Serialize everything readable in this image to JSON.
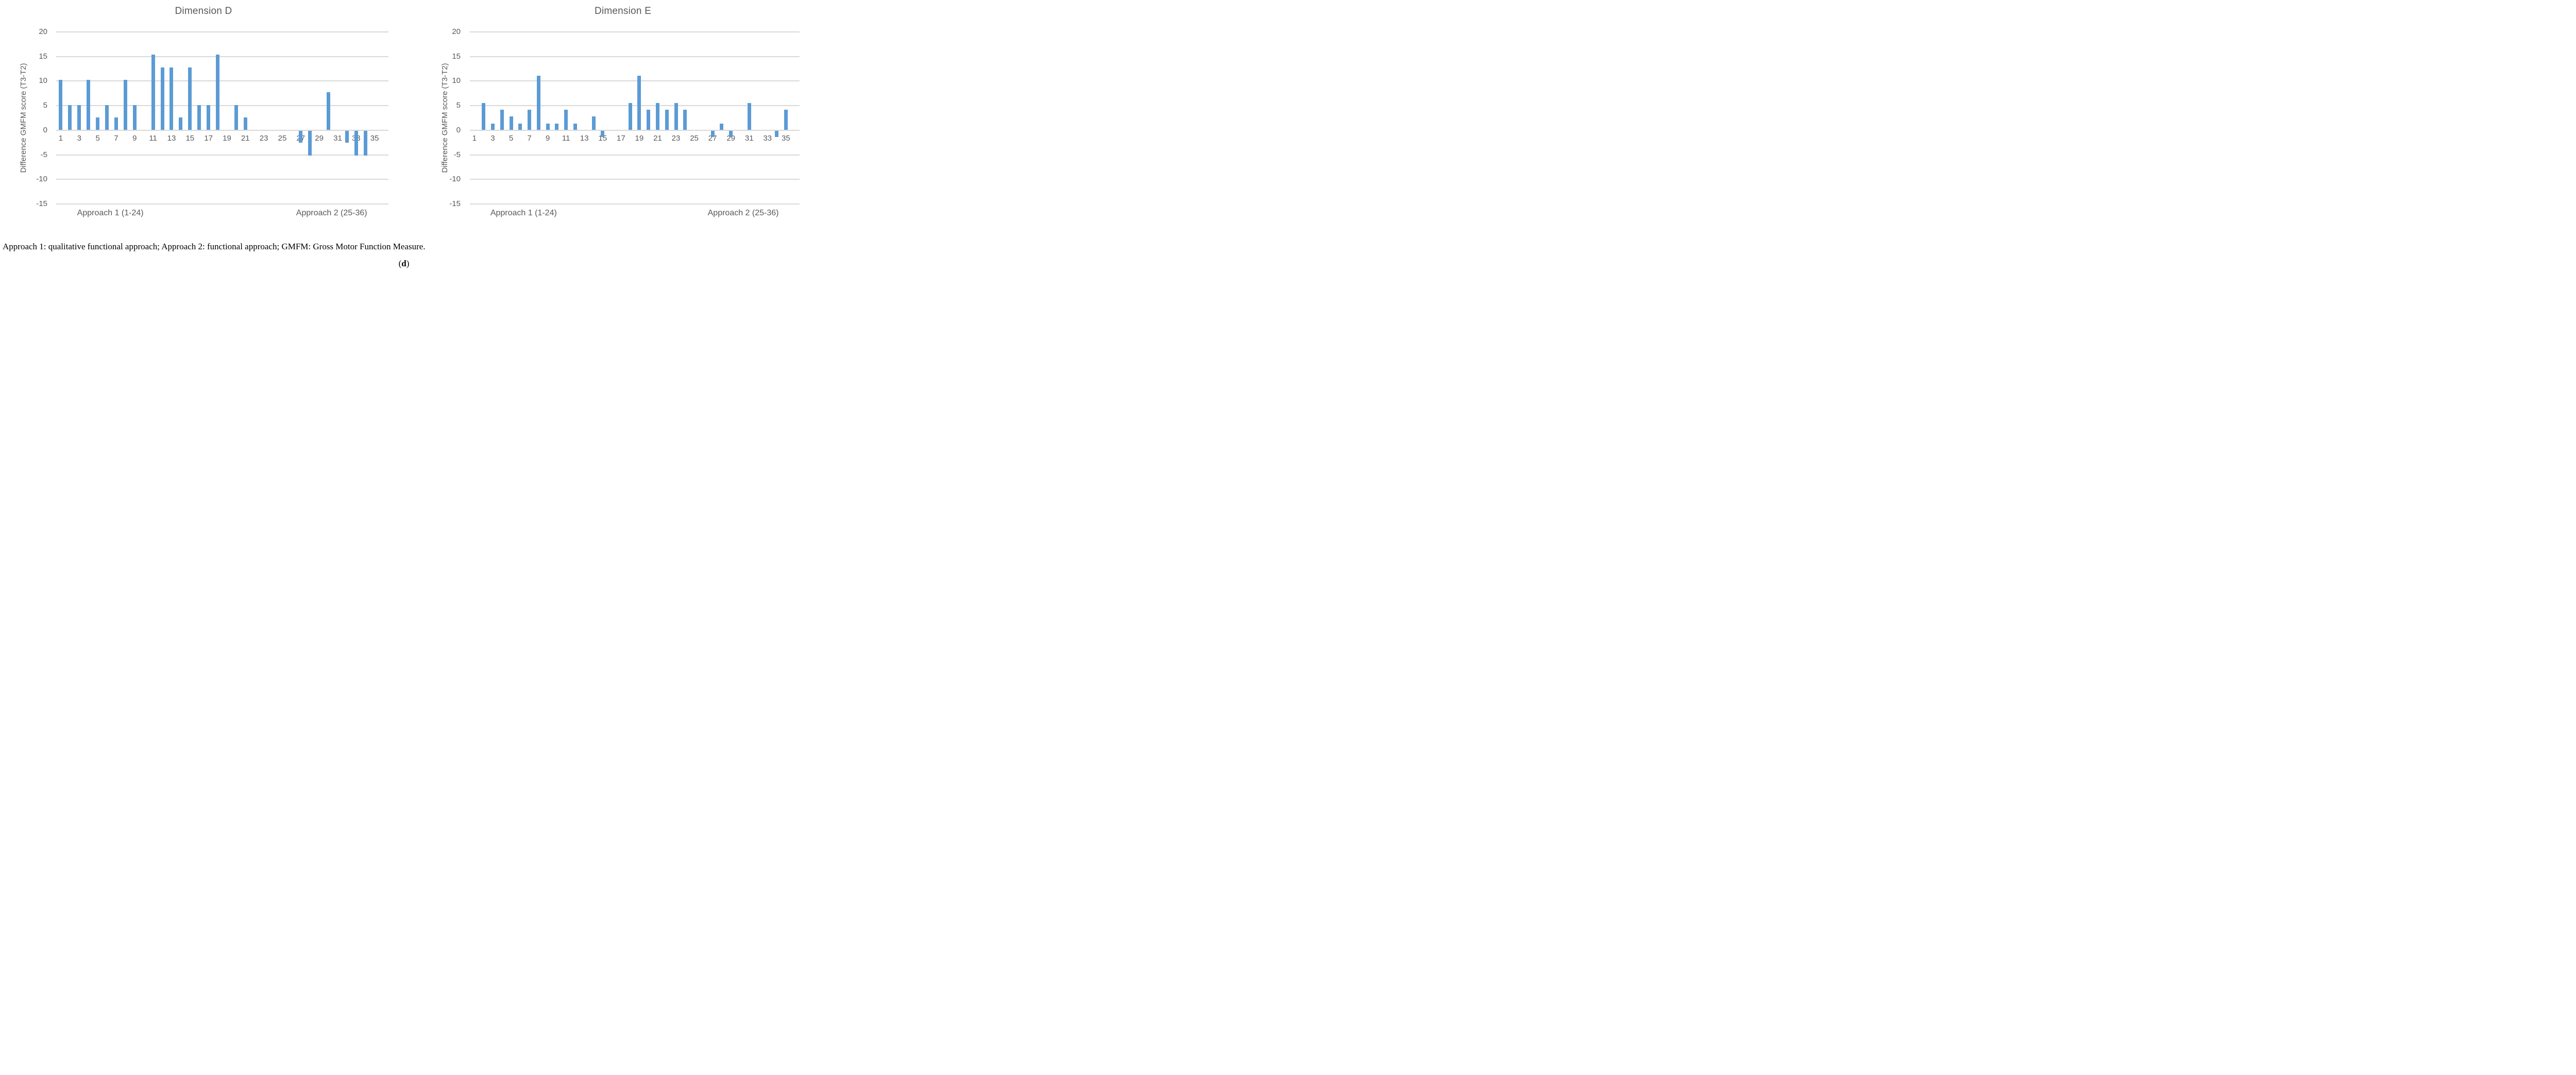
{
  "figure": {
    "caption": "Approach 1: qualitative functional approach; Approach 2: functional approach; GMFM: Gross Motor Function Measure.",
    "panel_label": {
      "open": "(",
      "letter": "d",
      "close": ")"
    }
  },
  "style": {
    "bar_color": "#5B9BD5",
    "grid_color": "#D9D9D9",
    "axis_text_color": "#595959",
    "title_color": "#595959"
  },
  "chart_data": [
    {
      "type": "bar",
      "title": "Dimension D",
      "ylabel": "Difference GMFM score (T3-T2)",
      "xlabel": "",
      "ylim": [
        -15,
        20
      ],
      "yticks": [
        20,
        15,
        10,
        5,
        0,
        -5,
        -10,
        -15
      ],
      "grid": true,
      "legend": null,
      "x": [
        1,
        2,
        3,
        4,
        5,
        6,
        7,
        8,
        9,
        10,
        11,
        12,
        13,
        14,
        15,
        16,
        17,
        18,
        19,
        20,
        21,
        22,
        23,
        24,
        25,
        26,
        27,
        28,
        29,
        30,
        31,
        32,
        33,
        34,
        35,
        36
      ],
      "xticks_shown": [
        1,
        3,
        5,
        7,
        9,
        11,
        13,
        15,
        17,
        19,
        21,
        23,
        25,
        27,
        29,
        31,
        33,
        35
      ],
      "values": [
        10.26,
        5.13,
        5.13,
        10.26,
        2.56,
        5.13,
        2.56,
        10.26,
        5.13,
        0,
        15.38,
        12.82,
        12.82,
        2.56,
        12.82,
        5.13,
        5.13,
        15.38,
        0,
        5.13,
        2.56,
        0,
        0,
        0,
        0,
        0,
        -2.56,
        -5.13,
        0,
        7.69,
        0,
        -2.56,
        -5.13,
        -5.13,
        0,
        0
      ],
      "x_group_labels": [
        "Approach 1 (1-24)",
        "Approach 2 (25-36)"
      ]
    },
    {
      "type": "bar",
      "title": "Dimension E",
      "ylabel": "Difference GMFM score (T3-T2)",
      "xlabel": "",
      "ylim": [
        -15,
        20
      ],
      "yticks": [
        20,
        15,
        10,
        5,
        0,
        -5,
        -10,
        -15
      ],
      "grid": true,
      "legend": null,
      "x": [
        1,
        2,
        3,
        4,
        5,
        6,
        7,
        8,
        9,
        10,
        11,
        12,
        13,
        14,
        15,
        16,
        17,
        18,
        19,
        20,
        21,
        22,
        23,
        24,
        25,
        26,
        27,
        28,
        29,
        30,
        31,
        32,
        33,
        34,
        35,
        36
      ],
      "xticks_shown": [
        1,
        3,
        5,
        7,
        9,
        11,
        13,
        15,
        17,
        19,
        21,
        23,
        25,
        27,
        29,
        31,
        33,
        35
      ],
      "values": [
        0,
        5.56,
        1.39,
        4.17,
        2.78,
        1.39,
        4.17,
        11.11,
        1.39,
        1.39,
        4.17,
        1.39,
        0,
        2.78,
        -1.39,
        0,
        0,
        5.56,
        11.11,
        4.17,
        5.56,
        4.17,
        5.56,
        4.17,
        0,
        0,
        -1.39,
        1.39,
        -1.39,
        0,
        5.56,
        0,
        0,
        -1.39,
        4.17,
        0
      ],
      "x_group_labels": [
        "Approach 1 (1-24)",
        "Approach 2 (25-36)"
      ]
    }
  ]
}
